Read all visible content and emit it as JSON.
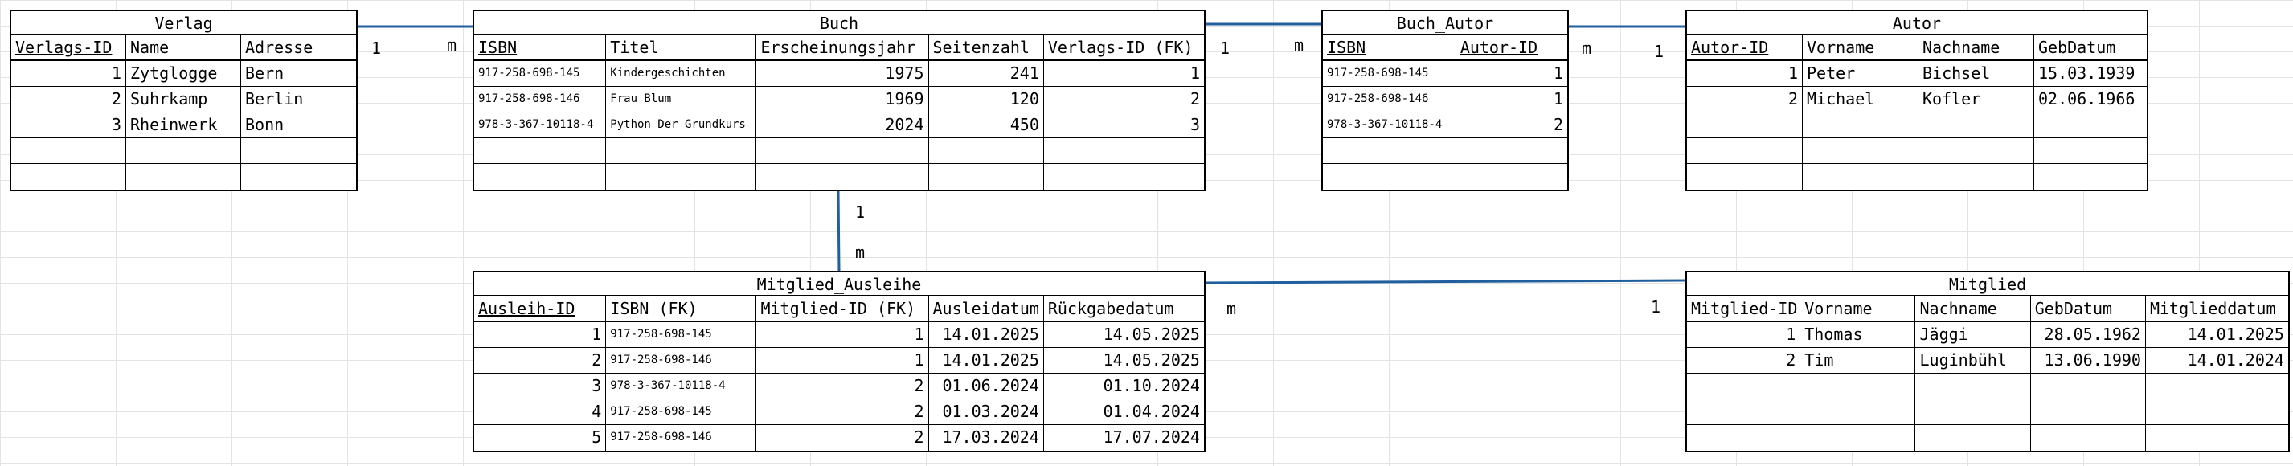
{
  "tables": {
    "verlag": {
      "title": "Verlag",
      "columns": [
        "Verlags-ID",
        "Name",
        "Adresse"
      ],
      "rows": [
        [
          "1",
          "Zytglogge",
          "Bern"
        ],
        [
          "2",
          "Suhrkamp",
          "Berlin"
        ],
        [
          "3",
          "Rheinwerk",
          "Bonn"
        ],
        [
          "",
          "",
          ""
        ],
        [
          "",
          "",
          ""
        ]
      ]
    },
    "buch": {
      "title": "Buch",
      "columns": [
        "ISBN",
        "Titel",
        "Erscheinungsjahr",
        "Seitenzahl",
        "Verlags-ID (FK)"
      ],
      "rows": [
        [
          "917-258-698-145",
          "Kindergeschichten",
          "1975",
          "241",
          "1"
        ],
        [
          "917-258-698-146",
          "Frau Blum",
          "1969",
          "120",
          "2"
        ],
        [
          "978-3-367-10118-4",
          "Python Der Grundkurs",
          "2024",
          "450",
          "3"
        ],
        [
          "",
          "",
          "",
          "",
          ""
        ],
        [
          "",
          "",
          "",
          "",
          ""
        ]
      ]
    },
    "buch_autor": {
      "title": "Buch_Autor",
      "columns": [
        "ISBN",
        "Autor-ID"
      ],
      "rows": [
        [
          "917-258-698-145",
          "1"
        ],
        [
          "917-258-698-146",
          "1"
        ],
        [
          "978-3-367-10118-4",
          "2"
        ],
        [
          "",
          ""
        ],
        [
          "",
          ""
        ]
      ]
    },
    "autor": {
      "title": "Autor",
      "columns": [
        "Autor-ID",
        "Vorname",
        "Nachname",
        "GebDatum"
      ],
      "rows": [
        [
          "1",
          "Peter",
          "Bichsel",
          "15.03.1939"
        ],
        [
          "2",
          "Michael",
          "Kofler",
          "02.06.1966"
        ],
        [
          "",
          "",
          "",
          ""
        ],
        [
          "",
          "",
          "",
          ""
        ],
        [
          "",
          "",
          "",
          ""
        ]
      ]
    },
    "mitglied_ausleihe": {
      "title": "Mitglied_Ausleihe",
      "columns": [
        "Ausleih-ID",
        "ISBN (FK)",
        "Mitglied-ID (FK)",
        "Ausleidatum",
        "Rückgabedatum"
      ],
      "rows": [
        [
          "1",
          "917-258-698-145",
          "1",
          "14.01.2025",
          "14.05.2025"
        ],
        [
          "2",
          "917-258-698-146",
          "1",
          "14.01.2025",
          "14.05.2025"
        ],
        [
          "3",
          "978-3-367-10118-4",
          "2",
          "01.06.2024",
          "01.10.2024"
        ],
        [
          "4",
          "917-258-698-145",
          "2",
          "01.03.2024",
          "01.04.2024"
        ],
        [
          "5",
          "917-258-698-146",
          "2",
          "17.03.2024",
          "17.07.2024"
        ]
      ]
    },
    "mitglied": {
      "title": "Mitglied",
      "columns": [
        "Mitglied-ID",
        "Vorname",
        "Nachname",
        "GebDatum",
        "Mitglieddatum"
      ],
      "rows": [
        [
          "1",
          "Thomas",
          "Jäggi",
          "28.05.1962",
          "14.01.2025"
        ],
        [
          "2",
          "Tim",
          "Luginbühl",
          "13.06.1990",
          "14.01.2024"
        ],
        [
          "",
          "",
          "",
          "",
          ""
        ],
        [
          "",
          "",
          "",
          "",
          ""
        ],
        [
          "",
          "",
          "",
          "",
          ""
        ]
      ]
    }
  },
  "cardinalities": {
    "verlag_buch": [
      "1",
      "m"
    ],
    "buch_buchautor": [
      "1",
      "m"
    ],
    "buchautor_autor": [
      "m",
      "1"
    ],
    "buch_ausleihe": [
      "1",
      "m"
    ],
    "ausleihe_mitglied": [
      "m",
      "1"
    ]
  },
  "colors": {
    "link": "#1f5f9e",
    "border": "#000000",
    "grid": "#e3e3e3"
  }
}
